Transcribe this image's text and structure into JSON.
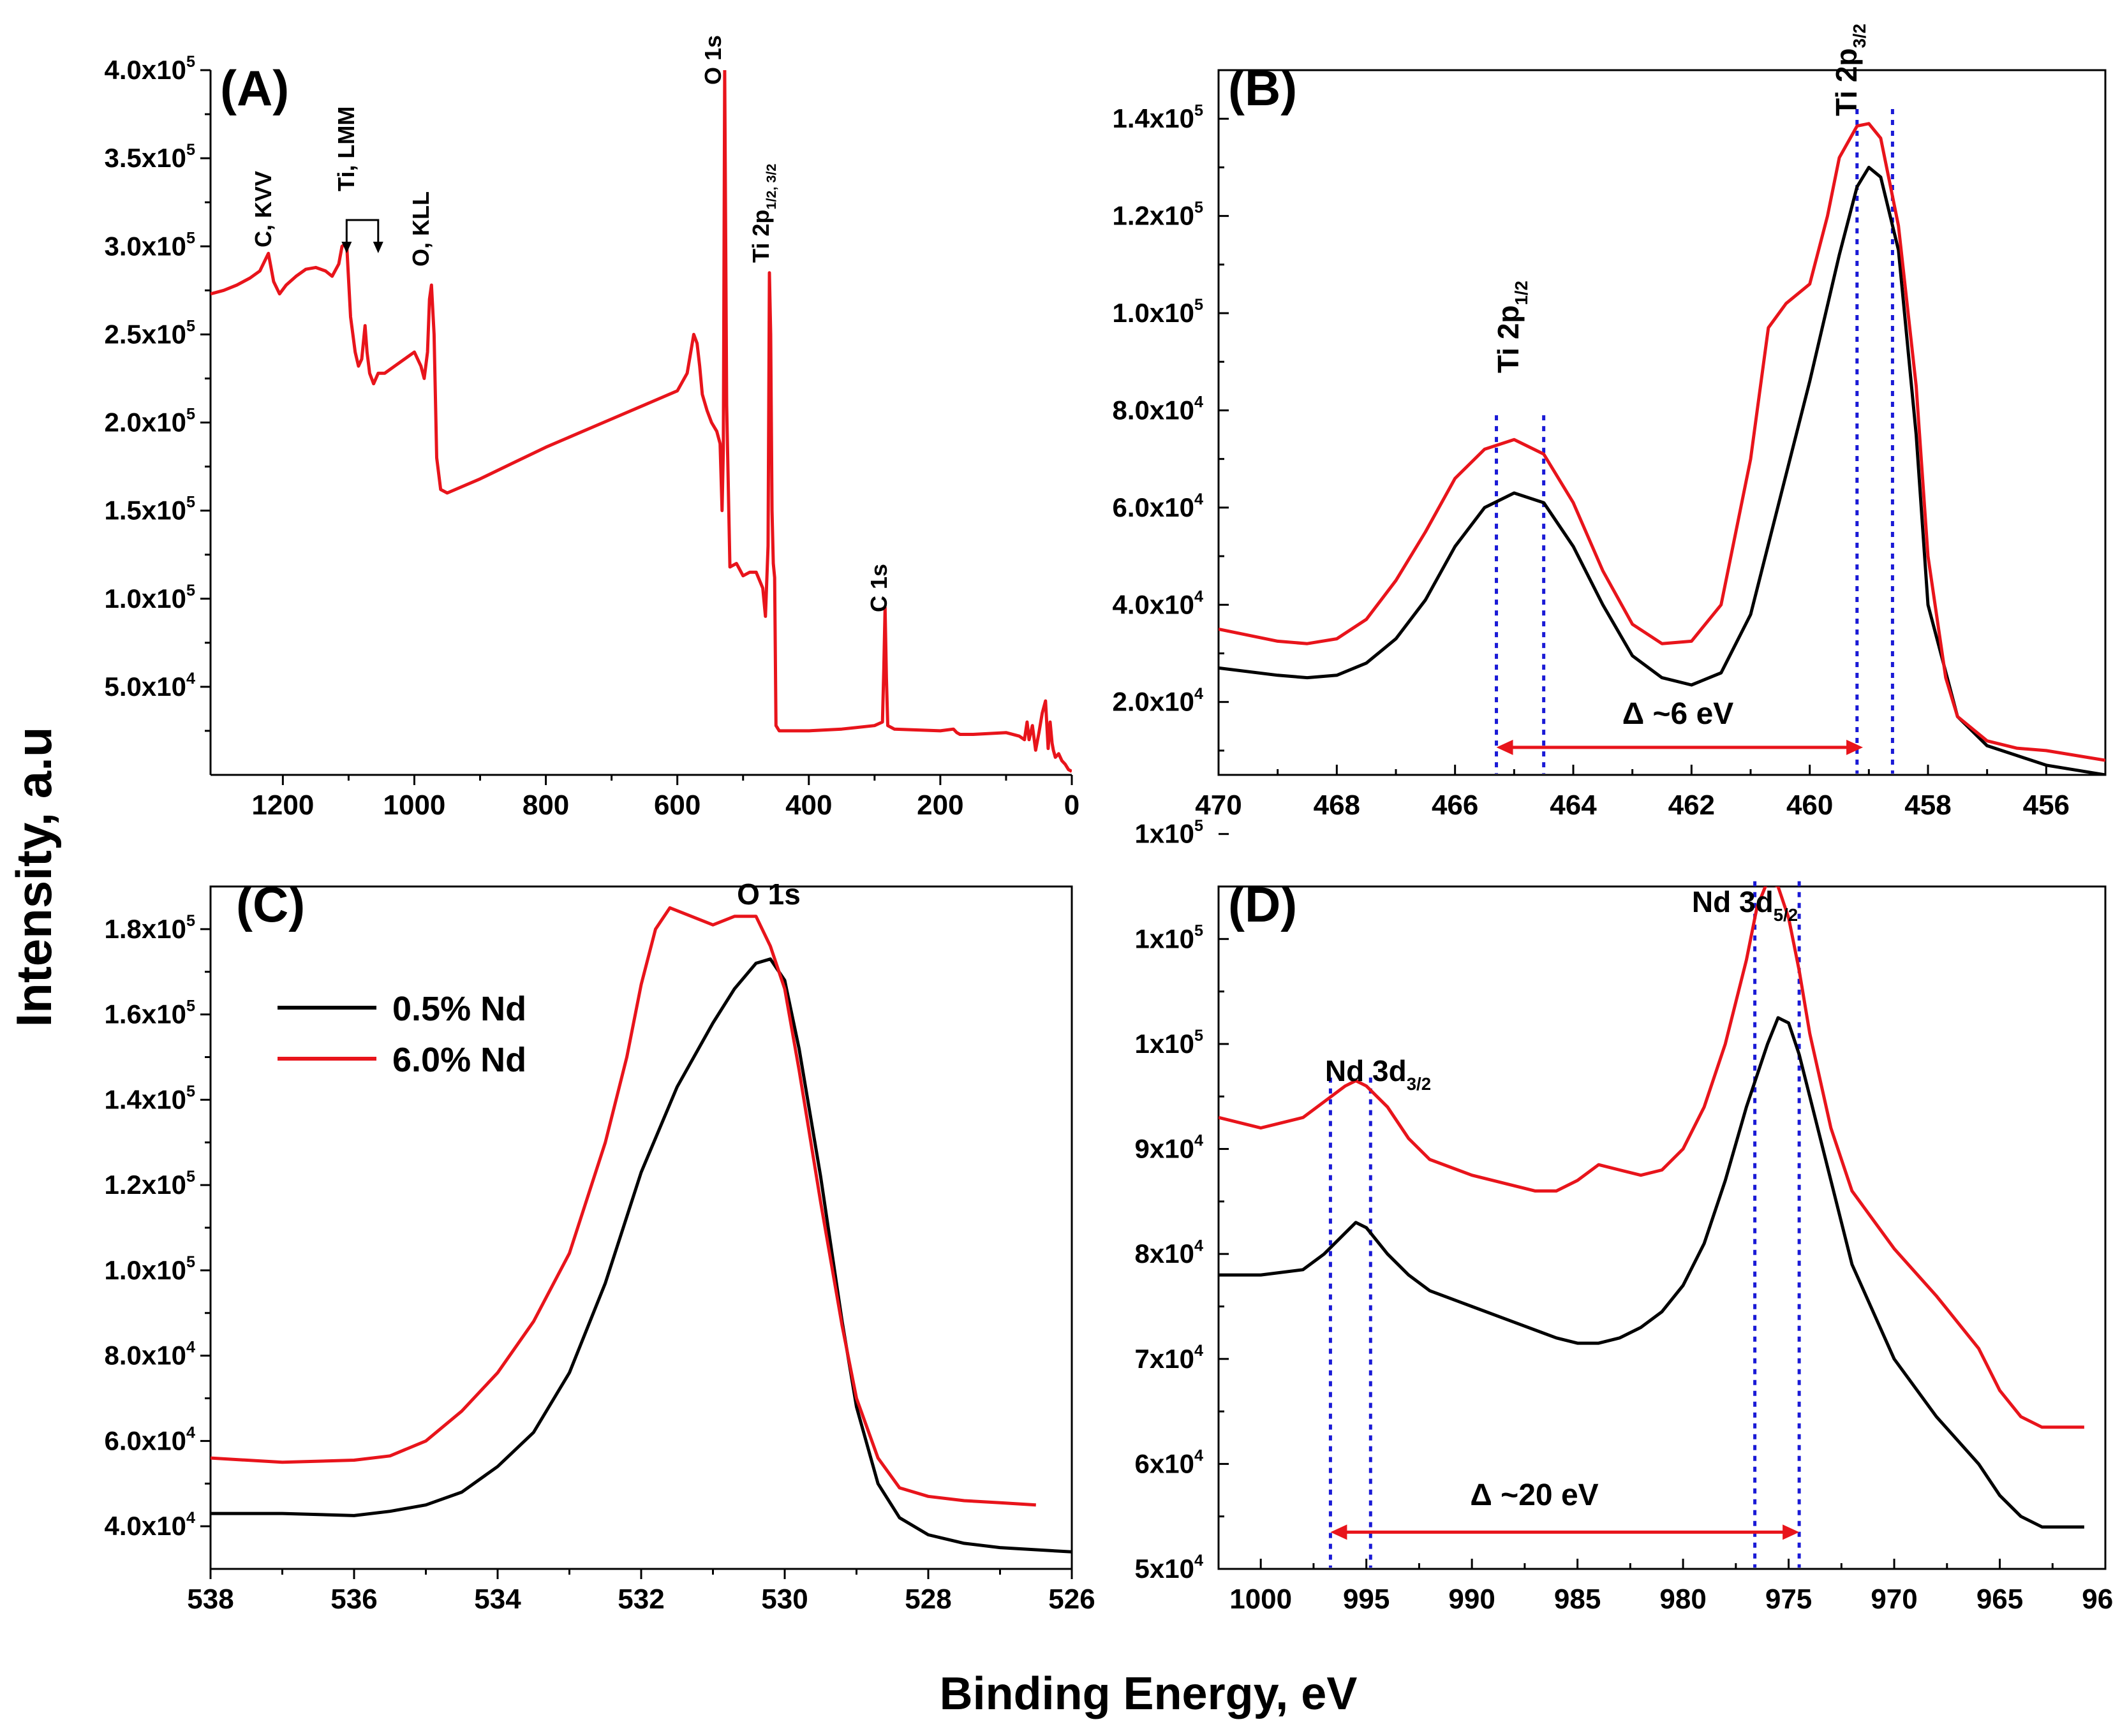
{
  "figure": {
    "ylabel": "Intensity, a.u",
    "xlabel": "Binding Energy, eV",
    "legend": {
      "series": [
        "0.5% Nd",
        "6.0% Nd"
      ],
      "colors": [
        "#000000",
        "#e8141b"
      ]
    },
    "colors": {
      "black": "#000000",
      "red": "#e8141b",
      "blue": "#1a1ad6"
    }
  },
  "chart_data": [
    {
      "id": "A",
      "type": "line",
      "panel_label": "(A)",
      "xlim": [
        1310,
        0
      ],
      "ylim": [
        0,
        400000
      ],
      "xticks": [
        1200,
        1000,
        800,
        600,
        400,
        200,
        0
      ],
      "yticks": [
        {
          "value": 50000,
          "base": "5.0x10",
          "exp": "4"
        },
        {
          "value": 100000,
          "base": "1.0x10",
          "exp": "5"
        },
        {
          "value": 150000,
          "base": "1.5x10",
          "exp": "5"
        },
        {
          "value": 200000,
          "base": "2.0x10",
          "exp": "5"
        },
        {
          "value": 250000,
          "base": "2.5x10",
          "exp": "5"
        },
        {
          "value": 300000,
          "base": "3.0x10",
          "exp": "5"
        },
        {
          "value": 350000,
          "base": "3.5x10",
          "exp": "5"
        },
        {
          "value": 400000,
          "base": "4.0x10",
          "exp": "5"
        }
      ],
      "series": [
        {
          "name": "6.0% Nd",
          "color": "red",
          "x": [
            1310,
            1290,
            1270,
            1250,
            1235,
            1222,
            1214,
            1205,
            1195,
            1180,
            1165,
            1150,
            1135,
            1125,
            1115,
            1110,
            1103,
            1097,
            1090,
            1085,
            1080,
            1075,
            1072,
            1068,
            1062,
            1055,
            1045,
            1030,
            1015,
            1000,
            990,
            985,
            980,
            977,
            974,
            970,
            966,
            960,
            950,
            900,
            850,
            800,
            750,
            700,
            650,
            600,
            585,
            575,
            570,
            566,
            562,
            555,
            548,
            540,
            535,
            532,
            530,
            528,
            525,
            520,
            510,
            500,
            490,
            480,
            470,
            466,
            462,
            460,
            458,
            456,
            454,
            452,
            450,
            445,
            400,
            350,
            300,
            288,
            286,
            284,
            282,
            280,
            270,
            200,
            180,
            175,
            170,
            150,
            100,
            80,
            72,
            68,
            65,
            60,
            55,
            50,
            45,
            40,
            36,
            33,
            30,
            28,
            25,
            20,
            15,
            10,
            5,
            0
          ],
          "y": [
            273000,
            275000,
            278000,
            282000,
            286000,
            296000,
            280000,
            273000,
            278000,
            283000,
            287000,
            288000,
            286000,
            283000,
            290000,
            300000,
            302000,
            260000,
            240000,
            232000,
            236000,
            255000,
            240000,
            228000,
            222000,
            228000,
            228000,
            232000,
            236000,
            240000,
            232000,
            225000,
            240000,
            270000,
            278000,
            250000,
            180000,
            162000,
            160000,
            168000,
            177000,
            186000,
            194000,
            202000,
            210000,
            218000,
            228000,
            250000,
            245000,
            232000,
            216000,
            207000,
            200000,
            195000,
            188000,
            150000,
            185000,
            400000,
            210000,
            118000,
            120000,
            113000,
            115000,
            115000,
            106000,
            90000,
            130000,
            285000,
            250000,
            150000,
            120000,
            112000,
            28000,
            25000,
            25000,
            26000,
            28000,
            30000,
            60000,
            95000,
            55000,
            28000,
            26000,
            25000,
            26000,
            24000,
            23000,
            23000,
            24000,
            22000,
            20000,
            30000,
            20000,
            28000,
            14000,
            24000,
            35000,
            42000,
            15000,
            30000,
            18000,
            14000,
            10000,
            12000,
            8000,
            6000,
            3000,
            2000
          ]
        }
      ],
      "annotations": [
        {
          "text": "C, KVV",
          "x": 1222
        },
        {
          "text": "Ti, LMM",
          "x": 1080
        },
        {
          "text": "O, KLL",
          "x": 978
        },
        {
          "text": "O 1s",
          "x": 530
        },
        {
          "text": "Ti 2p",
          "sub": "1/2, 3/2",
          "x": 458
        },
        {
          "text": "C 1s",
          "x": 284
        }
      ]
    },
    {
      "id": "B",
      "type": "line",
      "panel_label": "(B)",
      "xlim": [
        470,
        455
      ],
      "ylim": [
        5000,
        150000
      ],
      "xticks": [
        470,
        468,
        466,
        464,
        462,
        460,
        458,
        456
      ],
      "yticks": [
        {
          "value": 20000,
          "base": "2.0x10",
          "exp": "4"
        },
        {
          "value": 40000,
          "base": "4.0x10",
          "exp": "4"
        },
        {
          "value": 60000,
          "base": "6.0x10",
          "exp": "4"
        },
        {
          "value": 80000,
          "base": "8.0x10",
          "exp": "4"
        },
        {
          "value": 100000,
          "base": "1.0x10",
          "exp": "5"
        },
        {
          "value": 120000,
          "base": "1.2x10",
          "exp": "5"
        },
        {
          "value": 140000,
          "base": "1.4x10",
          "exp": "5"
        }
      ],
      "series": [
        {
          "name": "0.5% Nd",
          "color": "black",
          "x": [
            470,
            469,
            468.5,
            468,
            467.5,
            467,
            466.5,
            466,
            465.5,
            465,
            464.5,
            464,
            463.5,
            463,
            462.5,
            462,
            461.5,
            461,
            460.5,
            460,
            459.5,
            459.2,
            459,
            458.8,
            458.5,
            458.2,
            458,
            457.5,
            457,
            456.5,
            456,
            455
          ],
          "y": [
            27000,
            25500,
            25000,
            25500,
            28000,
            33000,
            41000,
            52000,
            60000,
            63000,
            61000,
            52000,
            40000,
            29500,
            25000,
            23500,
            26000,
            38000,
            62000,
            86000,
            112000,
            126000,
            130000,
            128000,
            113000,
            75000,
            40000,
            17000,
            11000,
            9000,
            7000,
            5000
          ]
        },
        {
          "name": "6.0% Nd",
          "color": "red",
          "x": [
            470,
            469,
            468.5,
            468,
            467.5,
            467,
            466.5,
            466,
            465.5,
            465,
            464.5,
            464,
            463.5,
            463,
            462.5,
            462,
            461.5,
            461,
            460.7,
            460.4,
            460,
            459.7,
            459.5,
            459.2,
            459,
            458.8,
            458.5,
            458.2,
            458,
            457.7,
            457.5,
            457,
            456.5,
            456,
            455
          ],
          "y": [
            35000,
            32500,
            32000,
            33000,
            37000,
            45000,
            55000,
            66000,
            72000,
            74000,
            71000,
            61000,
            47000,
            36000,
            32000,
            32500,
            40000,
            70000,
            97000,
            102000,
            106000,
            120000,
            132000,
            138500,
            139000,
            136000,
            118000,
            85000,
            50000,
            25000,
            17000,
            12000,
            10500,
            10000,
            8000
          ]
        }
      ],
      "annotations": [
        {
          "text": "Ti 2p",
          "sub": "1/2",
          "x": 464.9
        },
        {
          "text": "Ti 2p",
          "sub": "3/2",
          "x": 458.9
        },
        {
          "text": "Δ  ~6 eV"
        }
      ],
      "markers": {
        "vlines": [
          465.3,
          464.5,
          459.2,
          458.6
        ],
        "arrow": [
          465.3,
          459.1
        ]
      }
    },
    {
      "id": "C",
      "type": "line",
      "panel_label": "(C)",
      "xlim": [
        538,
        526
      ],
      "ylim": [
        30000,
        190000
      ],
      "xticks": [
        538,
        536,
        534,
        532,
        530,
        528,
        526
      ],
      "yticks": [
        {
          "value": 40000,
          "base": "4.0x10",
          "exp": "4"
        },
        {
          "value": 60000,
          "base": "6.0x10",
          "exp": "4"
        },
        {
          "value": 80000,
          "base": "8.0x10",
          "exp": "4"
        },
        {
          "value": 100000,
          "base": "1.0x10",
          "exp": "5"
        },
        {
          "value": 120000,
          "base": "1.2x10",
          "exp": "5"
        },
        {
          "value": 140000,
          "base": "1.4x10",
          "exp": "5"
        },
        {
          "value": 160000,
          "base": "1.6x10",
          "exp": "5"
        },
        {
          "value": 180000,
          "base": "1.8x10",
          "exp": "5"
        }
      ],
      "series": [
        {
          "name": "0.5% Nd",
          "color": "black",
          "x": [
            538,
            537,
            536,
            535.5,
            535,
            534.5,
            534,
            533.5,
            533,
            532.5,
            532,
            531.5,
            531,
            530.7,
            530.4,
            530.2,
            530,
            529.8,
            529.5,
            529.2,
            529,
            528.7,
            528.4,
            528,
            527.5,
            527,
            526
          ],
          "y": [
            43000,
            43000,
            42500,
            43500,
            45000,
            48000,
            54000,
            62000,
            76000,
            97000,
            123000,
            143000,
            158000,
            166000,
            172000,
            173000,
            168000,
            152000,
            122000,
            88000,
            68000,
            50000,
            42000,
            38000,
            36000,
            35000,
            34000
          ]
        },
        {
          "name": "6.0% Nd",
          "color": "red",
          "x": [
            538,
            537,
            536,
            535.5,
            535,
            534.5,
            534,
            533.5,
            533,
            532.5,
            532.2,
            532,
            531.8,
            531.6,
            531.3,
            531,
            530.7,
            530.4,
            530.2,
            530,
            529.8,
            529.5,
            529.2,
            529,
            528.7,
            528.4,
            528,
            527.5,
            527,
            526.5
          ],
          "y": [
            56000,
            55000,
            55500,
            56500,
            60000,
            67000,
            76000,
            88000,
            104000,
            130000,
            150000,
            167000,
            180000,
            185000,
            183000,
            181000,
            183000,
            183000,
            176000,
            166000,
            147000,
            116000,
            87000,
            70000,
            56000,
            49000,
            47000,
            46000,
            45500,
            45000
          ]
        }
      ],
      "annotations": [
        {
          "text": "O 1s",
          "x": 530.5
        }
      ]
    },
    {
      "id": "D",
      "type": "line",
      "panel_label": "(D)",
      "xlim": [
        1002,
        960
      ],
      "ylim": [
        50000,
        115000
      ],
      "xticks": [
        1000,
        995,
        990,
        985,
        980,
        975,
        970,
        965,
        960
      ],
      "yticks": [
        {
          "value": 50000,
          "base": "5x10",
          "exp": "4"
        },
        {
          "value": 60000,
          "base": "6x10",
          "exp": "4"
        },
        {
          "value": 70000,
          "base": "7x10",
          "exp": "4"
        },
        {
          "value": 80000,
          "base": "8x10",
          "exp": "4"
        },
        {
          "value": 90000,
          "base": "9x10",
          "exp": "4"
        },
        {
          "value": 100000,
          "base": "1x10",
          "exp": "5"
        },
        {
          "value": 110000,
          "base": "1x10",
          "exp": "5"
        },
        {
          "value": 120000,
          "base": "1x10",
          "exp": "5"
        }
      ],
      "series": [
        {
          "name": "0.5% Nd",
          "color": "black",
          "x": [
            1002,
            1000,
            998,
            997,
            996,
            995.5,
            995,
            994,
            993,
            992,
            990,
            988,
            986,
            985,
            984,
            983,
            982,
            981,
            980,
            979,
            978,
            977,
            976,
            975.5,
            975,
            974.5,
            974,
            973,
            972,
            970,
            968,
            966,
            965,
            964,
            963,
            961
          ],
          "y": [
            78000,
            78000,
            78500,
            80000,
            82000,
            83000,
            82500,
            80000,
            78000,
            76500,
            75000,
            73500,
            72000,
            71500,
            71500,
            72000,
            73000,
            74500,
            77000,
            81000,
            87000,
            94000,
            100000,
            102500,
            102000,
            99000,
            95000,
            87000,
            79000,
            70000,
            64500,
            60000,
            57000,
            55000,
            54000,
            54000
          ]
        },
        {
          "name": "6.0% Nd",
          "color": "red",
          "x": [
            1002,
            1000,
            998,
            997,
            996,
            995.5,
            995,
            994,
            993,
            992,
            990,
            988,
            987,
            986,
            985,
            984,
            983,
            982,
            981,
            980,
            979,
            978,
            977,
            976.5,
            976,
            975.5,
            975,
            974.5,
            974,
            973,
            972,
            970,
            968,
            966,
            965,
            964,
            963,
            961
          ],
          "y": [
            93000,
            92000,
            93000,
            94500,
            96000,
            96500,
            96000,
            94000,
            91000,
            89000,
            87500,
            86500,
            86000,
            86000,
            87000,
            88500,
            88000,
            87500,
            88000,
            90000,
            94000,
            100000,
            108000,
            113000,
            115500,
            115000,
            112000,
            107000,
            101000,
            92000,
            86000,
            80500,
            76000,
            71000,
            67000,
            64500,
            63500,
            63500
          ]
        }
      ],
      "annotations": [
        {
          "text": "Nd 3d",
          "sub": "3/2",
          "x": 995.5
        },
        {
          "text": "Nd 3d",
          "sub": "5/2",
          "x": 975.5
        },
        {
          "text": "Δ  ~20 eV"
        }
      ],
      "markers": {
        "vlines": [
          996.7,
          994.8,
          976.6,
          974.5
        ],
        "arrow": [
          996.7,
          974.5
        ]
      }
    }
  ]
}
